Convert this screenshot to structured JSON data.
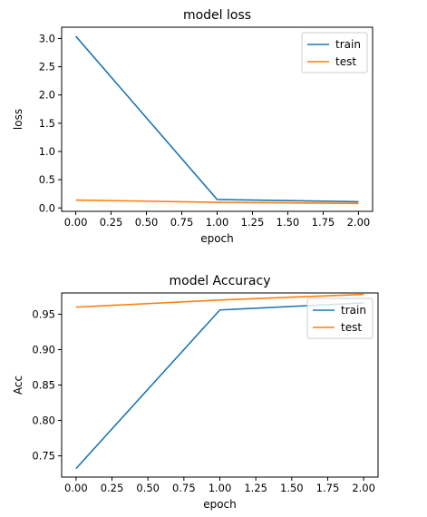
{
  "chart_data": [
    {
      "type": "line",
      "title": "model loss",
      "xlabel": "epoch",
      "ylabel": "loss",
      "x": [
        0,
        1,
        2
      ],
      "xlim": [
        -0.1,
        2.1
      ],
      "ylim": [
        -0.06,
        3.2
      ],
      "xticks": [
        0,
        0.25,
        0.5,
        0.75,
        1,
        1.25,
        1.5,
        1.75,
        2
      ],
      "xtick_labels": [
        "0.00",
        "0.25",
        "0.50",
        "0.75",
        "1.00",
        "1.25",
        "1.50",
        "1.75",
        "2.00"
      ],
      "yticks": [
        0,
        0.5,
        1,
        1.5,
        2,
        2.5,
        3
      ],
      "ytick_labels": [
        "0.0",
        "0.5",
        "1.0",
        "1.5",
        "2.0",
        "2.5",
        "3.0"
      ],
      "legend_position": "upper right",
      "grid": false,
      "series": [
        {
          "name": "train",
          "color": "#1f77b4",
          "values": [
            3.04,
            0.15,
            0.11
          ]
        },
        {
          "name": "test",
          "color": "#ff7f0e",
          "values": [
            0.14,
            0.1,
            0.08
          ]
        }
      ]
    },
    {
      "type": "line",
      "title": "model Accuracy",
      "xlabel": "epoch",
      "ylabel": "Acc",
      "x": [
        0,
        1,
        2
      ],
      "xlim": [
        -0.1,
        2.1
      ],
      "ylim": [
        0.72,
        0.98
      ],
      "xticks": [
        0,
        0.25,
        0.5,
        0.75,
        1,
        1.25,
        1.5,
        1.75,
        2
      ],
      "xtick_labels": [
        "0.00",
        "0.25",
        "0.50",
        "0.75",
        "1.00",
        "1.25",
        "1.50",
        "1.75",
        "2.00"
      ],
      "yticks": [
        0.75,
        0.8,
        0.85,
        0.9,
        0.95
      ],
      "ytick_labels": [
        "0.75",
        "0.80",
        "0.85",
        "0.90",
        "0.95"
      ],
      "legend_position": "upper right",
      "grid": false,
      "series": [
        {
          "name": "train",
          "color": "#1f77b4",
          "values": [
            0.732,
            0.956,
            0.966
          ]
        },
        {
          "name": "test",
          "color": "#ff7f0e",
          "values": [
            0.96,
            0.97,
            0.978
          ]
        }
      ]
    }
  ]
}
